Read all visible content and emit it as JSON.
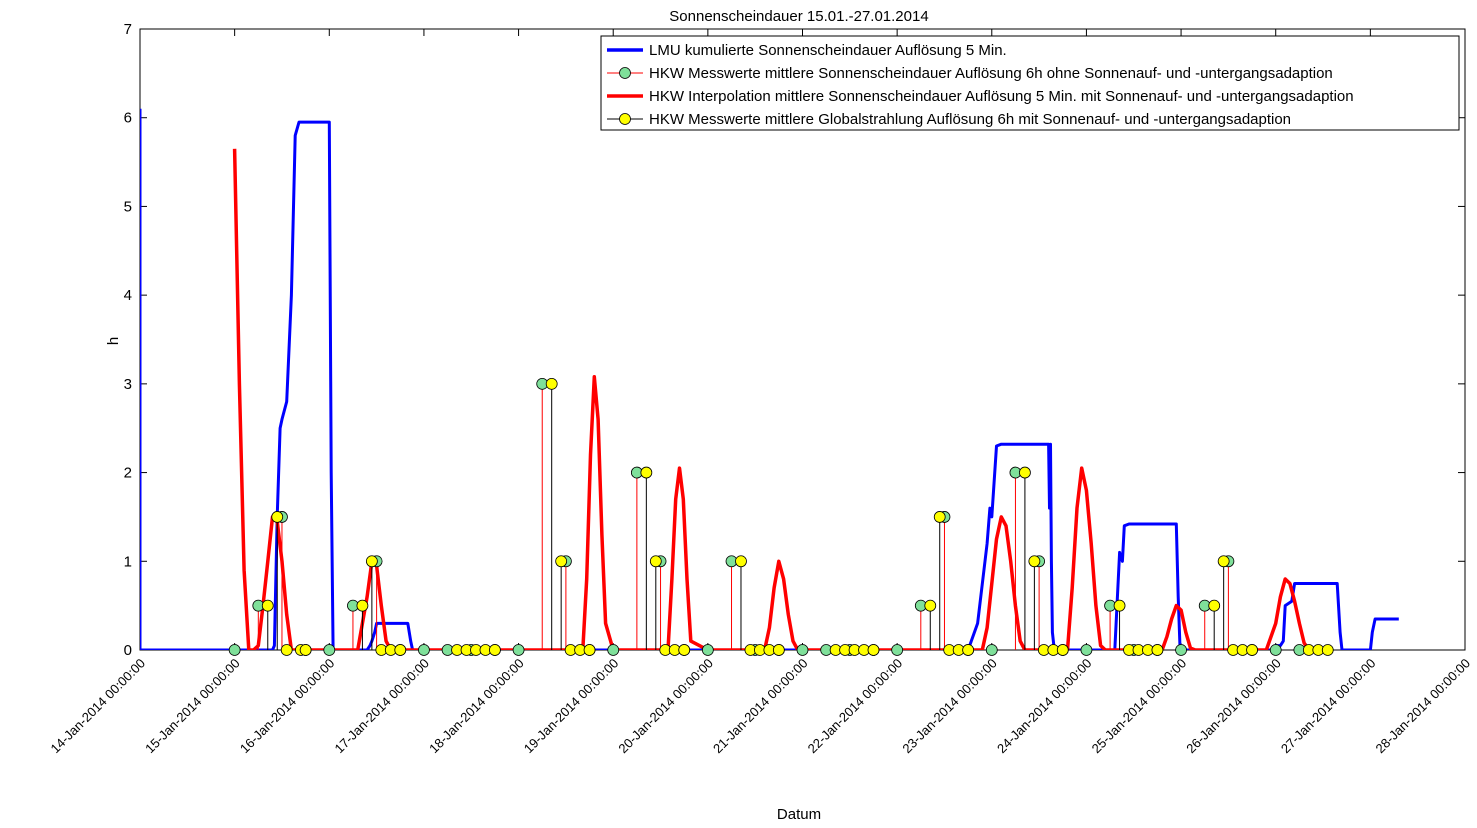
{
  "chart_data": {
    "type": "line",
    "title": "Sonnenscheindauer 15.01.-27.01.2014",
    "xlabel": "Datum",
    "ylabel": "h",
    "xlim": [
      0,
      14
    ],
    "ylim": [
      0,
      7
    ],
    "yticks": [
      0,
      1,
      2,
      3,
      4,
      5,
      6,
      7
    ],
    "xticks": [
      {
        "value": 0,
        "label": "14-Jan-2014 00:00:00"
      },
      {
        "value": 1,
        "label": "15-Jan-2014 00:00:00"
      },
      {
        "value": 2,
        "label": "16-Jan-2014 00:00:00"
      },
      {
        "value": 3,
        "label": "17-Jan-2014 00:00:00"
      },
      {
        "value": 4,
        "label": "18-Jan-2014 00:00:00"
      },
      {
        "value": 5,
        "label": "19-Jan-2014 00:00:00"
      },
      {
        "value": 6,
        "label": "20-Jan-2014 00:00:00"
      },
      {
        "value": 7,
        "label": "21-Jan-2014 00:00:00"
      },
      {
        "value": 8,
        "label": "22-Jan-2014 00:00:00"
      },
      {
        "value": 9,
        "label": "23-Jan-2014 00:00:00"
      },
      {
        "value": 10,
        "label": "24-Jan-2014 00:00:00"
      },
      {
        "value": 11,
        "label": "25-Jan-2014 00:00:00"
      },
      {
        "value": 12,
        "label": "26-Jan-2014 00:00:00"
      },
      {
        "value": 13,
        "label": "27-Jan-2014 00:00:00"
      },
      {
        "value": 14,
        "label": "28-Jan-2014 00:00:00"
      }
    ],
    "x_units": "days since 14-Jan-2014 00:00:00",
    "legend_position": "top-right",
    "series": [
      {
        "name": "LMU kumulierte Sonnenscheindauer Auflösung 5 Min.",
        "kind": "line",
        "color": "#0000ff",
        "x": [
          0,
          0,
          1.4,
          1.42,
          1.45,
          1.48,
          1.5,
          1.55,
          1.6,
          1.64,
          1.68,
          2.0,
          2.02,
          2.04,
          2.4,
          2.43,
          2.45,
          2.48,
          2.5,
          2.75,
          2.8,
          2.83,
          2.86,
          2.88,
          2.9,
          3.0,
          3.3,
          3.35,
          8.75,
          8.85,
          8.95,
          8.98,
          9.0,
          9.05,
          9.1,
          9.6,
          9.61,
          9.62,
          9.63,
          9.64,
          9.66,
          10.3,
          10.35,
          10.38,
          10.4,
          10.45,
          10.55,
          10.95,
          10.97,
          10.99,
          11.95,
          12.0,
          12.02,
          12.05,
          12.08,
          12.1,
          12.17,
          12.2,
          12.22,
          12.25,
          12.65,
          12.68,
          12.7,
          13.0,
          13.02,
          13.05,
          13.3
        ],
        "y": [
          6.1,
          0,
          0,
          0.05,
          1.5,
          2.5,
          2.6,
          2.8,
          4.0,
          5.8,
          5.95,
          5.95,
          2.0,
          0,
          0,
          0.05,
          0.1,
          0.2,
          0.3,
          0.3,
          0.3,
          0.3,
          0.1,
          0,
          0,
          0,
          0,
          0,
          0,
          0.3,
          1.2,
          1.6,
          1.5,
          2.3,
          2.32,
          2.32,
          1.6,
          2.32,
          1.0,
          0.2,
          0,
          0,
          1.1,
          1.0,
          1.4,
          1.42,
          1.42,
          1.42,
          0.6,
          0,
          0,
          0.05,
          0.05,
          0.05,
          0.1,
          0.5,
          0.55,
          0.75,
          0.75,
          0.75,
          0.75,
          0.2,
          0,
          0,
          0.2,
          0.35,
          0.35
        ]
      },
      {
        "name": "HKW Messwerte mittlere Sonnenscheindauer Auflösung 6h ohne Sonnenauf- und -untergangsadaption",
        "kind": "stem",
        "color": "#ff0000",
        "markerColor": "#7fe09a",
        "x": [
          1.0,
          1.25,
          1.5,
          1.75,
          2.0,
          2.25,
          2.5,
          2.75,
          3.0,
          3.25,
          3.5,
          3.75,
          4.0,
          4.25,
          4.5,
          4.75,
          5.0,
          5.25,
          5.5,
          5.75,
          6.0,
          6.25,
          6.5,
          6.75,
          7.0,
          7.25,
          7.5,
          7.75,
          8.0,
          8.25,
          8.5,
          8.75,
          9.0,
          9.25,
          9.5,
          9.75,
          10.0,
          10.25,
          10.5,
          10.75,
          11.0,
          11.25,
          11.5,
          11.75,
          12.0,
          12.25
        ],
        "y": [
          0,
          0.5,
          1.5,
          0,
          0,
          0.5,
          1.0,
          0,
          0,
          0,
          0,
          0,
          0,
          3.0,
          1.0,
          0,
          0,
          2.0,
          1.0,
          0,
          0,
          1.0,
          0,
          0,
          0,
          0,
          0,
          0,
          0,
          0.5,
          1.5,
          0,
          0,
          2.0,
          1.0,
          0,
          0,
          0.5,
          0,
          0,
          0,
          0.5,
          1.0,
          0,
          0,
          0
        ]
      },
      {
        "name": "HKW Interpolation mittlere Sonnenscheindauer Auflösung 5 Min. mit Sonnenauf- und -untergangsadaption",
        "kind": "line",
        "color": "#ff0000",
        "x": [
          1.0,
          1.05,
          1.1,
          1.15,
          1.2,
          1.25,
          1.3,
          1.35,
          1.4,
          1.45,
          1.5,
          1.55,
          1.6,
          1.65,
          1.7,
          1.8,
          2.0,
          2.3,
          2.35,
          2.4,
          2.45,
          2.5,
          2.55,
          2.6,
          2.65,
          2.7,
          2.8,
          3.0,
          4.6,
          4.68,
          4.72,
          4.76,
          4.8,
          4.84,
          4.88,
          4.92,
          5.0,
          5.5,
          5.58,
          5.62,
          5.66,
          5.7,
          5.74,
          5.78,
          5.82,
          6.0,
          6.6,
          6.65,
          6.7,
          6.75,
          6.8,
          6.85,
          6.9,
          6.95,
          7.0,
          8.9,
          8.95,
          9.0,
          9.05,
          9.1,
          9.15,
          9.2,
          9.25,
          9.3,
          9.35,
          9.4,
          9.5,
          9.8,
          9.85,
          9.9,
          9.95,
          10.0,
          10.05,
          10.1,
          10.15,
          10.2,
          10.3,
          10.8,
          10.85,
          10.9,
          10.95,
          11.0,
          11.05,
          11.1,
          11.15,
          11.2,
          11.9,
          11.95,
          12.0,
          12.05,
          12.1,
          12.15,
          12.2,
          12.25,
          12.3,
          12.35,
          12.5
        ],
        "y": [
          5.65,
          3.0,
          0.9,
          0,
          0,
          0.05,
          0.5,
          1.0,
          1.5,
          1.45,
          1.0,
          0.4,
          0,
          0,
          0,
          0,
          0,
          0,
          0.3,
          0.6,
          1.0,
          0.95,
          0.5,
          0.1,
          0,
          0,
          0,
          0,
          0,
          0.02,
          0.8,
          2.2,
          3.08,
          2.6,
          1.3,
          0.3,
          0,
          0,
          0.02,
          0.8,
          1.7,
          2.05,
          1.7,
          0.8,
          0.1,
          0,
          0,
          0.25,
          0.7,
          1.0,
          0.8,
          0.4,
          0.1,
          0,
          0,
          0,
          0.25,
          0.75,
          1.25,
          1.5,
          1.4,
          1.0,
          0.5,
          0.1,
          0,
          0,
          0,
          0,
          0.7,
          1.6,
          2.05,
          1.8,
          1.2,
          0.5,
          0.05,
          0,
          0,
          0,
          0.15,
          0.35,
          0.5,
          0.45,
          0.2,
          0.02,
          0,
          0,
          0,
          0.15,
          0.3,
          0.6,
          0.8,
          0.75,
          0.55,
          0.3,
          0.08,
          0,
          0
        ]
      },
      {
        "name": "HKW Messwerte mittlere Globalstrahlung Auflösung 6h mit Sonnenauf- und -untergangsadaption",
        "kind": "stem",
        "color": "#000000",
        "markerColor": "#ffff00",
        "x": [
          1.35,
          1.45,
          1.55,
          1.7,
          1.75,
          2.35,
          2.45,
          2.55,
          2.65,
          2.75,
          3.35,
          3.45,
          3.55,
          3.65,
          3.75,
          4.35,
          4.45,
          4.55,
          4.65,
          4.75,
          5.35,
          5.45,
          5.55,
          5.65,
          5.75,
          6.35,
          6.45,
          6.55,
          6.65,
          6.75,
          7.35,
          7.45,
          7.55,
          7.65,
          7.75,
          8.35,
          8.45,
          8.55,
          8.65,
          8.75,
          9.35,
          9.45,
          9.55,
          9.65,
          9.75,
          10.35,
          10.45,
          10.55,
          10.65,
          10.75,
          11.35,
          11.45,
          11.55,
          11.65,
          11.75,
          12.35,
          12.45,
          12.55
        ],
        "y": [
          0.5,
          1.5,
          0,
          0,
          0,
          0.5,
          1.0,
          0,
          0,
          0,
          0,
          0,
          0,
          0,
          0,
          3.0,
          1.0,
          0,
          0,
          0,
          2.0,
          1.0,
          0,
          0,
          0,
          1.0,
          0,
          0,
          0,
          0,
          0,
          0,
          0,
          0,
          0,
          0.5,
          1.5,
          0,
          0,
          0,
          2.0,
          1.0,
          0,
          0,
          0,
          0.5,
          0,
          0,
          0,
          0,
          0.5,
          1.0,
          0,
          0,
          0,
          0,
          0,
          0
        ]
      }
    ]
  }
}
